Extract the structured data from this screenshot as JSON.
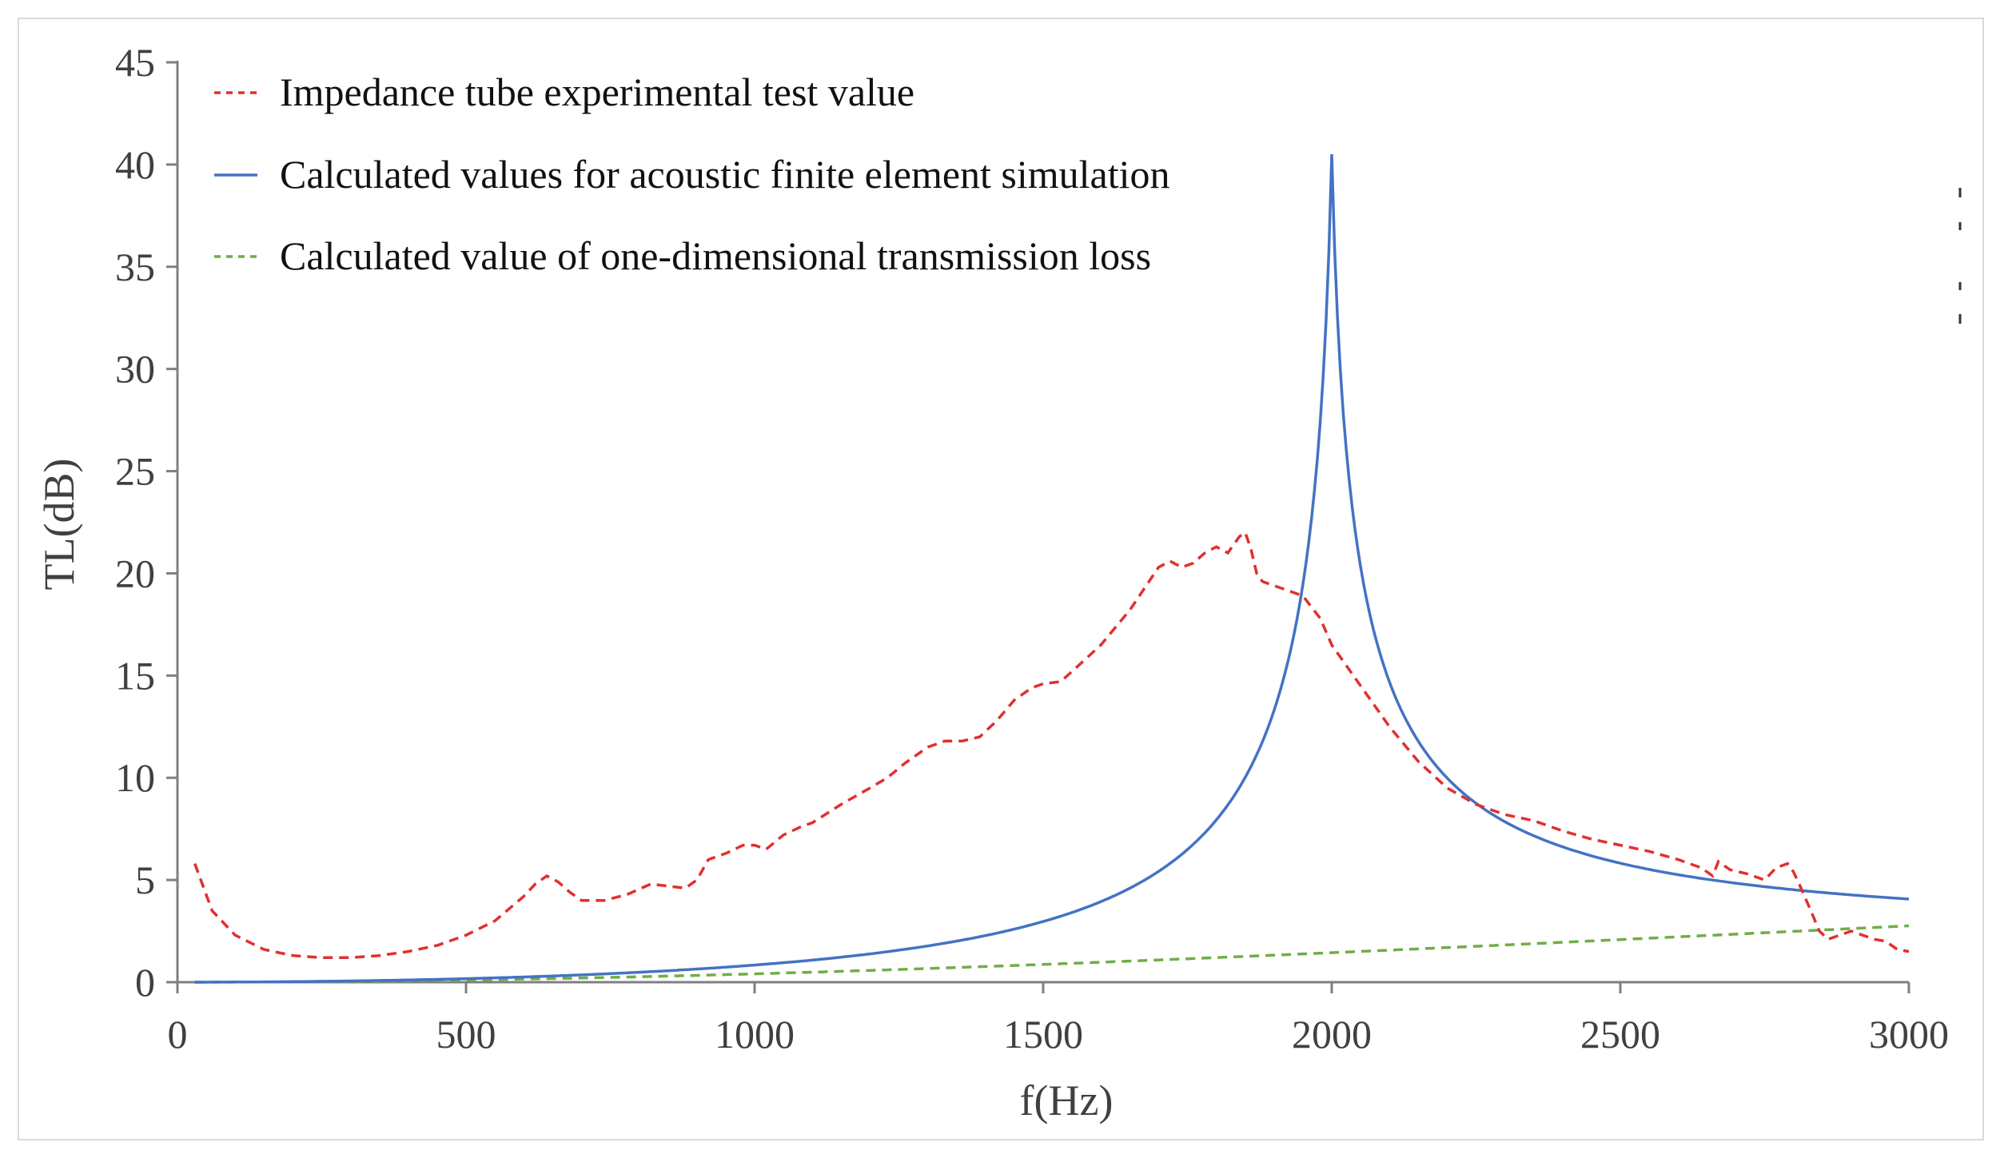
{
  "chart_data": {
    "type": "line",
    "title": "",
    "xlabel": "f(Hz)",
    "ylabel": "TL(dB)",
    "xlim": [
      0,
      3000
    ],
    "ylim": [
      0,
      45
    ],
    "xticks": [
      0,
      500,
      1000,
      1500,
      2000,
      2500,
      3000
    ],
    "yticks": [
      0,
      5,
      10,
      15,
      20,
      25,
      30,
      35,
      40,
      45
    ],
    "grid": false,
    "legend_position": "top-left",
    "series": [
      {
        "name": "Impedance tube experimental test value",
        "color": "#e03030",
        "style": "dashed",
        "x": [
          30,
          60,
          100,
          150,
          200,
          250,
          300,
          350,
          400,
          450,
          500,
          550,
          600,
          620,
          640,
          660,
          680,
          700,
          740,
          780,
          820,
          850,
          880,
          900,
          920,
          950,
          980,
          1000,
          1020,
          1050,
          1080,
          1100,
          1150,
          1200,
          1230,
          1260,
          1300,
          1330,
          1360,
          1390,
          1420,
          1450,
          1480,
          1500,
          1530,
          1550,
          1600,
          1650,
          1700,
          1720,
          1740,
          1760,
          1780,
          1800,
          1820,
          1840,
          1850,
          1860,
          1870,
          1880,
          1900,
          1950,
          1980,
          2000,
          2050,
          2100,
          2150,
          2200,
          2250,
          2300,
          2350,
          2400,
          2450,
          2500,
          2550,
          2600,
          2640,
          2660,
          2670,
          2690,
          2720,
          2750,
          2770,
          2790,
          2800,
          2810,
          2830,
          2845,
          2860,
          2880,
          2900,
          2920,
          2940,
          2960,
          2980,
          3000
        ],
        "values": [
          5.8,
          3.5,
          2.3,
          1.6,
          1.3,
          1.2,
          1.2,
          1.3,
          1.5,
          1.8,
          2.3,
          3.0,
          4.2,
          4.8,
          5.2,
          4.9,
          4.4,
          4.0,
          4.0,
          4.3,
          4.8,
          4.7,
          4.6,
          5.0,
          6.0,
          6.3,
          6.7,
          6.7,
          6.5,
          7.2,
          7.6,
          7.8,
          8.7,
          9.5,
          10.0,
          10.7,
          11.5,
          11.8,
          11.8,
          12.0,
          12.8,
          13.8,
          14.4,
          14.6,
          14.7,
          15.2,
          16.5,
          18.2,
          20.3,
          20.6,
          20.3,
          20.5,
          21.0,
          21.3,
          21.0,
          21.8,
          22.0,
          21.2,
          20.0,
          19.6,
          19.4,
          18.9,
          17.8,
          16.5,
          14.5,
          12.5,
          10.8,
          9.5,
          8.7,
          8.2,
          7.9,
          7.4,
          7.0,
          6.7,
          6.4,
          6.0,
          5.6,
          5.2,
          5.9,
          5.5,
          5.3,
          5.0,
          5.6,
          5.8,
          5.4,
          4.8,
          3.5,
          2.5,
          2.1,
          2.3,
          2.5,
          2.3,
          2.1,
          2.0,
          1.6,
          1.5
        ]
      },
      {
        "name": "Calculated values for acoustic finite element simulation",
        "color": "#4472c4",
        "style": "solid",
        "peak_hz": 2000,
        "peak_value": 40.5
      },
      {
        "name": "Calculated value of one-dimensional transmission loss",
        "color": "#70ad47",
        "style": "dashed"
      }
    ]
  }
}
